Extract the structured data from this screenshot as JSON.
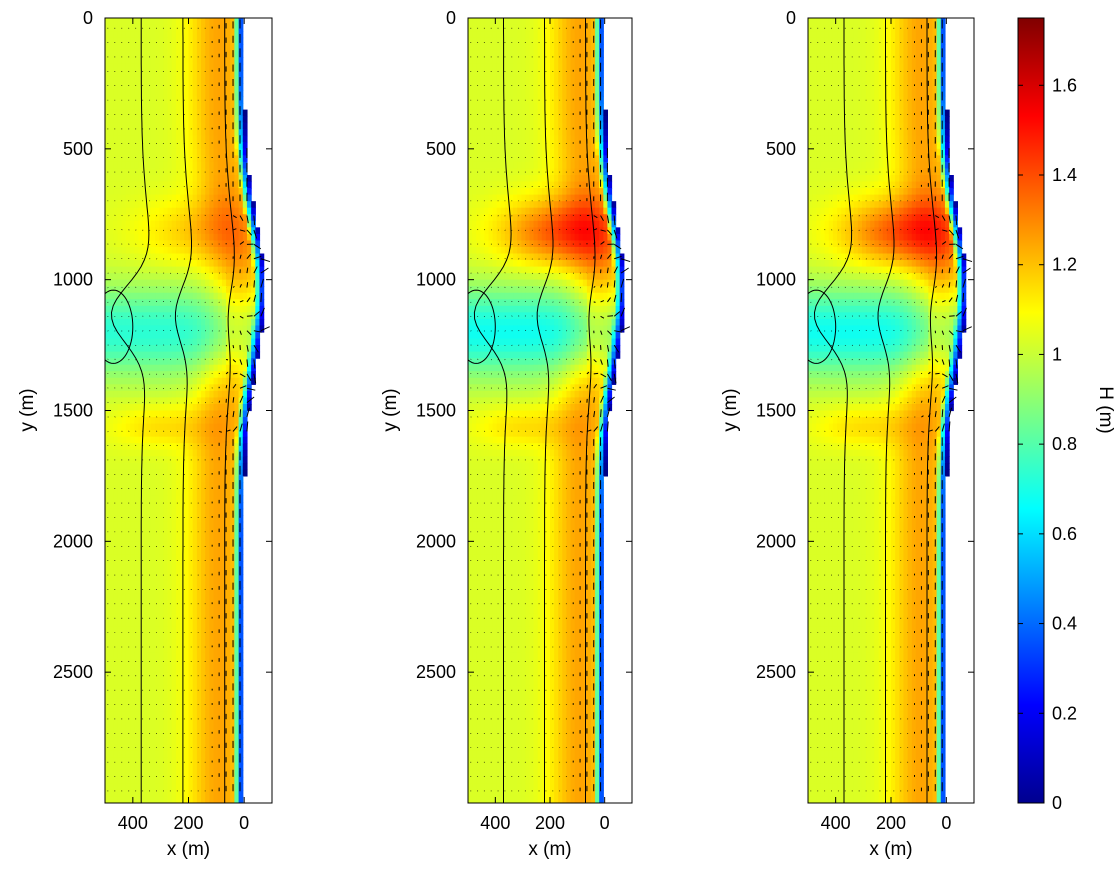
{
  "chart_data": {
    "type": "heatmap",
    "description_of_layout": "three side-by-side map panels sharing one colorbar",
    "panels": [
      {
        "xlabel": "x (m)",
        "ylabel": "y (m)",
        "xlim": [
          500,
          -100
        ],
        "ylim": [
          3000,
          0
        ],
        "x_tick_values": [
          400,
          200,
          0
        ],
        "x_tick_labels": [
          "400",
          "200",
          "0"
        ],
        "y_tick_values": [
          0,
          500,
          1000,
          1500,
          2000,
          2500
        ],
        "y_tick_labels": [
          "0",
          "500",
          "1000",
          "1500",
          "2000",
          "2500"
        ],
        "contour_x_positions_far_field": [
          370,
          220,
          70
        ],
        "shoreline_x": 0,
        "shoal_center_y": 1150,
        "peak_H": 1.35,
        "shadow_H": 0.75
      },
      {
        "xlabel": "x (m)",
        "ylabel": "y (m)",
        "xlim": [
          500,
          -100
        ],
        "ylim": [
          3000,
          0
        ],
        "x_tick_values": [
          400,
          200,
          0
        ],
        "x_tick_labels": [
          "400",
          "200",
          "0"
        ],
        "y_tick_values": [
          0,
          500,
          1000,
          1500,
          2000,
          2500
        ],
        "y_tick_labels": [
          "0",
          "500",
          "1000",
          "1500",
          "2000",
          "2500"
        ],
        "contour_x_positions_far_field": [
          370,
          220,
          70
        ],
        "shoreline_x": 0,
        "shoal_center_y": 1150,
        "peak_H": 1.55,
        "shadow_H": 0.7
      },
      {
        "xlabel": "x (m)",
        "ylabel": "y (m)",
        "xlim": [
          500,
          -100
        ],
        "ylim": [
          3000,
          0
        ],
        "x_tick_values": [
          400,
          200,
          0
        ],
        "x_tick_labels": [
          "400",
          "200",
          "0"
        ],
        "y_tick_values": [
          0,
          500,
          1000,
          1500,
          2000,
          2500
        ],
        "y_tick_labels": [
          "0",
          "500",
          "1000",
          "1500",
          "2000",
          "2500"
        ],
        "contour_x_positions_far_field": [
          370,
          220,
          70
        ],
        "shoreline_x": 0,
        "shoal_center_y": 1150,
        "peak_H": 1.55,
        "shadow_H": 0.7
      }
    ],
    "colorbar": {
      "label": "H (m)",
      "range": [
        0,
        1.75
      ],
      "tick_values": [
        0,
        0.2,
        0.4,
        0.6,
        0.8,
        1.0,
        1.2,
        1.4,
        1.6
      ],
      "tick_labels": [
        "0",
        "0.2",
        "0.4",
        "0.6",
        "0.8",
        "1",
        "1.2",
        "1.4",
        "1.6"
      ],
      "colormap": "jet"
    }
  }
}
